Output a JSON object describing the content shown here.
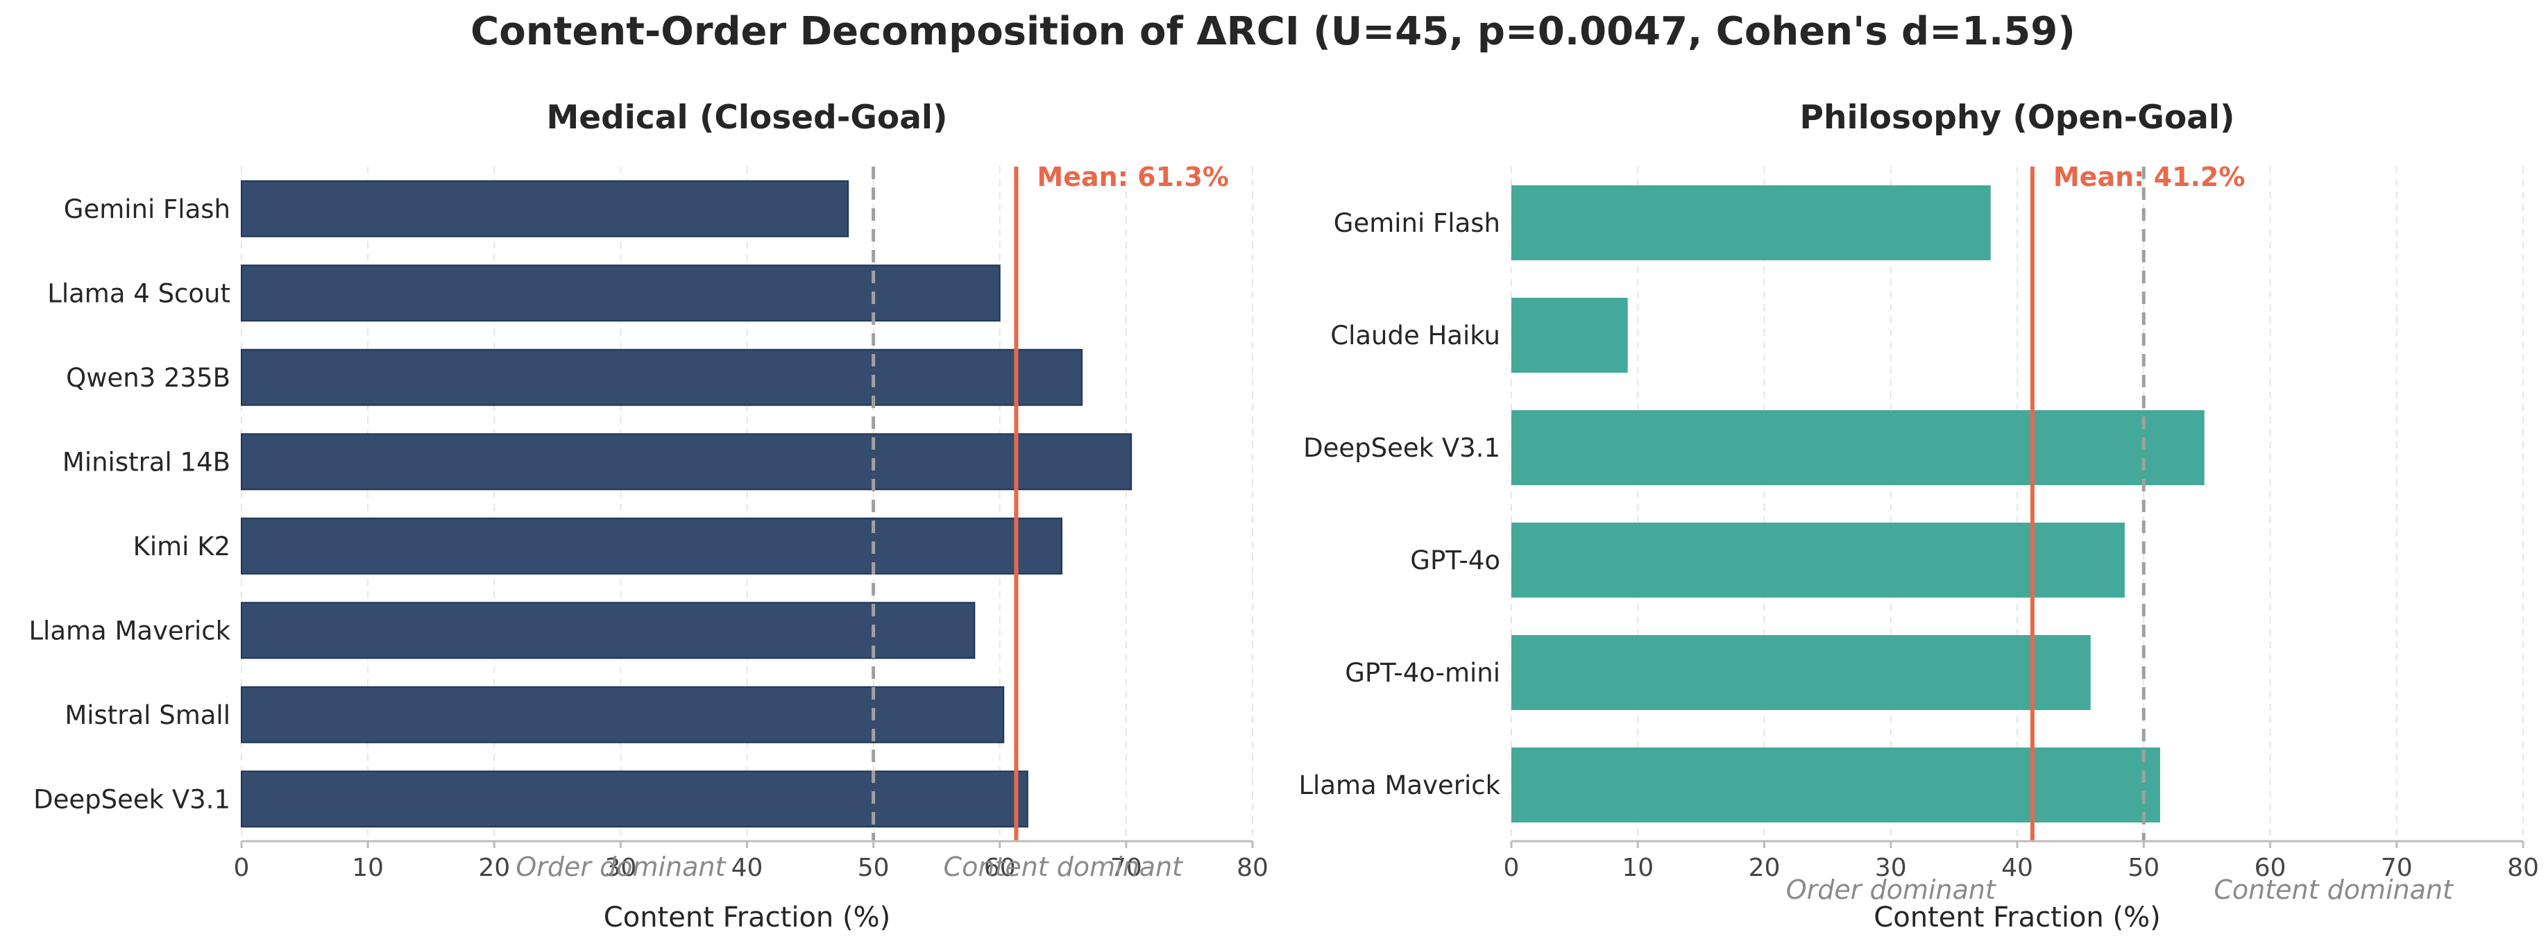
{
  "title": "Content-Order Decomposition of ΔRCI (U=45, p=0.0047, Cohen's d=1.59)",
  "colors": {
    "medical_bar": "#354c6e",
    "medical_edge": "#1f3557",
    "philosophy_bar": "#40a798",
    "mean": "#e8694a",
    "threshold": "#a0a0a0"
  },
  "chart_data": [
    {
      "type": "bar",
      "orientation": "horizontal",
      "title": "Medical (Closed-Goal)",
      "xlabel": "Content Fraction (%)",
      "ylabel": "",
      "xlim": [
        0,
        80
      ],
      "xticks": [
        "0",
        "10",
        "20",
        "30",
        "40",
        "50",
        "60",
        "70",
        "80"
      ],
      "categories": [
        "Gemini Flash",
        "Llama 4 Scout",
        "Qwen3 235B",
        "Ministral 14B",
        "Kimi K2",
        "Llama Maverick",
        "Mistral Small",
        "DeepSeek V3.1"
      ],
      "values": [
        48.0,
        60.0,
        66.5,
        70.4,
        64.9,
        58.0,
        60.3,
        62.2
      ],
      "mean_value": 61.3,
      "mean_label": "Mean: 61.3%",
      "threshold": 50,
      "left_annotation": "Order dominant",
      "right_annotation": "Content dominant",
      "grid": true
    },
    {
      "type": "bar",
      "orientation": "horizontal",
      "title": "Philosophy (Open-Goal)",
      "xlabel": "Content Fraction (%)",
      "ylabel": "",
      "xlim": [
        0,
        80
      ],
      "xticks": [
        "0",
        "10",
        "20",
        "30",
        "40",
        "50",
        "60",
        "70",
        "80"
      ],
      "categories": [
        "Gemini Flash",
        "Claude Haiku",
        "DeepSeek V3.1",
        "GPT-4o",
        "GPT-4o-mini",
        "Llama Maverick"
      ],
      "values": [
        37.9,
        9.2,
        54.8,
        48.5,
        45.8,
        51.3
      ],
      "mean_value": 41.2,
      "mean_label": "Mean: 41.2%",
      "threshold": 50,
      "left_annotation": "Order dominant",
      "right_annotation": "Content dominant",
      "grid": true
    }
  ]
}
